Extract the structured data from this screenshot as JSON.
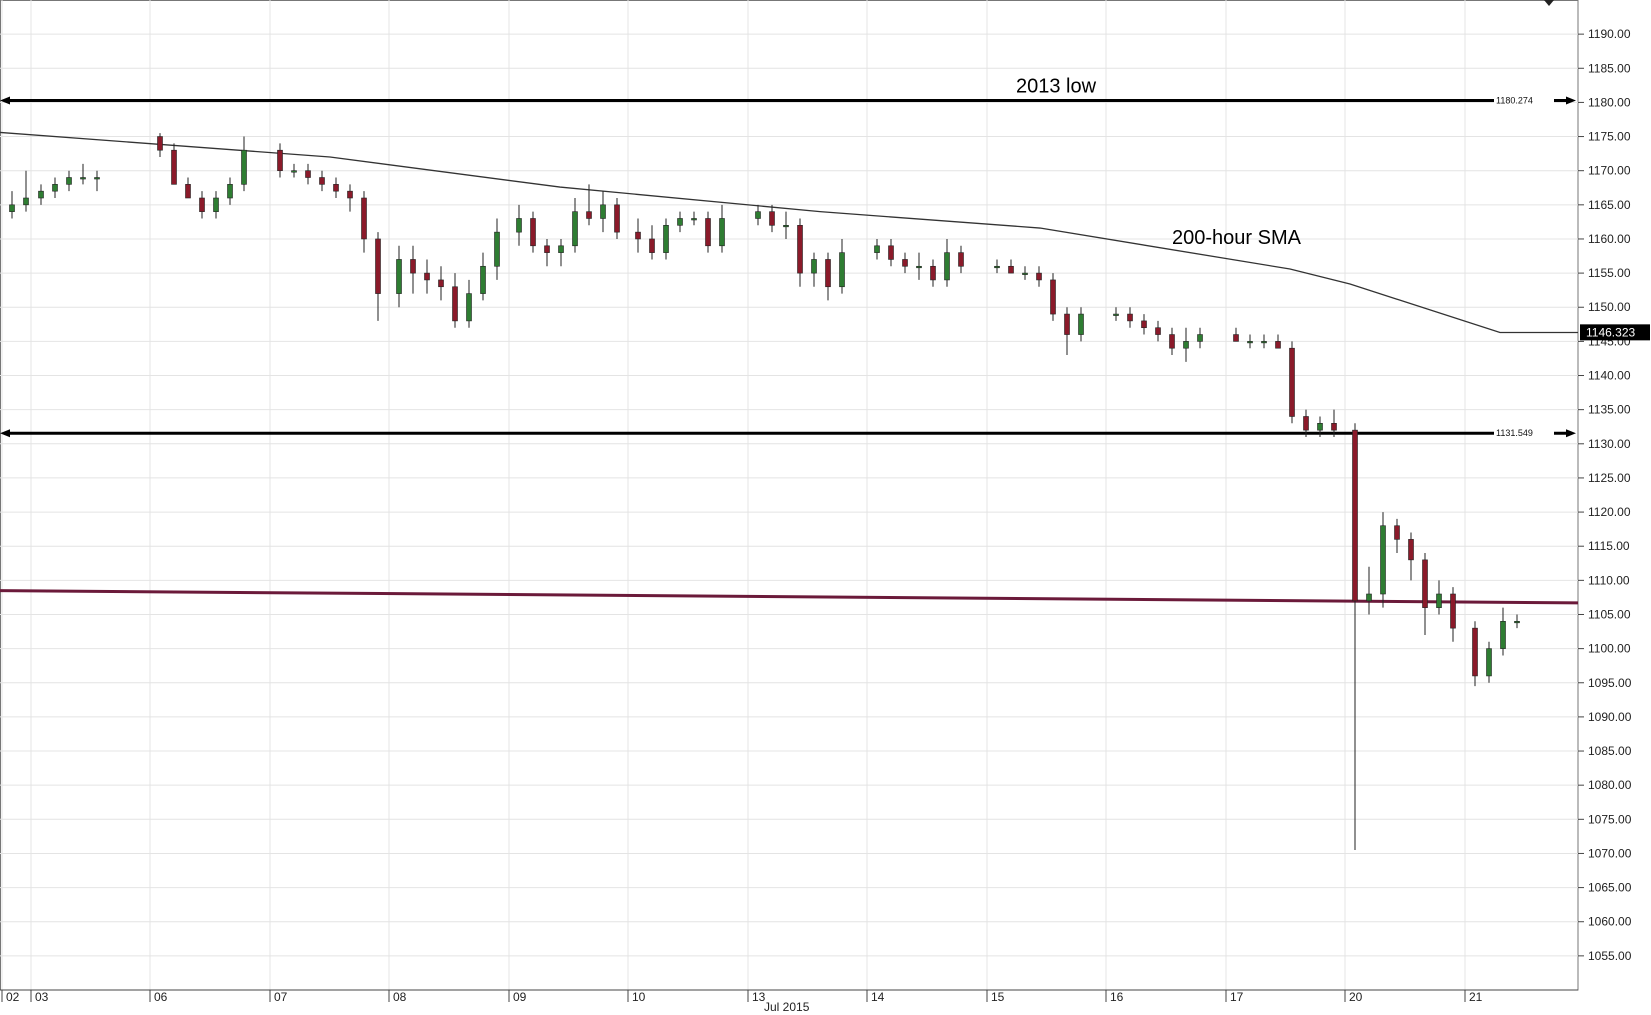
{
  "chart_data": {
    "type": "candlestick",
    "ylim": [
      1050,
      1195
    ],
    "y_ticks": [
      "1055.00",
      "1060.00",
      "1065.00",
      "1070.00",
      "1075.00",
      "1080.00",
      "1085.00",
      "1090.00",
      "1095.00",
      "1100.00",
      "1105.00",
      "1110.00",
      "1115.00",
      "1120.00",
      "1125.00",
      "1130.00",
      "1135.00",
      "1140.00",
      "1145.00",
      "1150.00",
      "1155.00",
      "1160.00",
      "1165.00",
      "1170.00",
      "1175.00",
      "1180.00",
      "1185.00",
      "1190.00"
    ],
    "x_labels": [
      "02",
      "03",
      "06",
      "07",
      "08",
      "09",
      "10",
      "13",
      "14",
      "15",
      "16",
      "17",
      "20",
      "21"
    ],
    "x_sublabel": "Jul 2015",
    "grid": true,
    "current_price": "1146.323",
    "horizontal_levels": [
      {
        "value": 1180.274,
        "label": "1180.274",
        "annotation": "2013 low",
        "color": "#000000"
      },
      {
        "value": 1131.549,
        "label": "1131.549",
        "annotation": "",
        "color": "#000000"
      }
    ],
    "trendline": {
      "start": 1108.5,
      "end": 1106.7,
      "color": "#6b1a3a"
    },
    "sma": {
      "name": "200-hour SMA",
      "color": "#333333",
      "points": [
        {
          "x": "02",
          "y": 1175.6
        },
        {
          "x": "07",
          "y": 1172.0
        },
        {
          "x": "09",
          "y": 1167.6
        },
        {
          "x": "13",
          "y": 1164.0
        },
        {
          "x": "15",
          "y": 1161.6
        },
        {
          "x": "17",
          "y": 1155.6
        },
        {
          "x": "20",
          "y": 1153.4
        },
        {
          "x": "21",
          "y": 1146.3
        }
      ]
    },
    "candles": [
      {
        "day": "02",
        "o": 1164,
        "h": 1167,
        "l": 1163,
        "c": 1165
      },
      {
        "day": "02",
        "o": 1165,
        "h": 1170,
        "l": 1164,
        "c": 1166
      },
      {
        "day": "03",
        "o": 1166,
        "h": 1168,
        "l": 1165,
        "c": 1167
      },
      {
        "day": "03",
        "o": 1167,
        "h": 1169,
        "l": 1166,
        "c": 1168
      },
      {
        "day": "03",
        "o": 1168,
        "h": 1170,
        "l": 1167,
        "c": 1169
      },
      {
        "day": "03",
        "o": 1169,
        "h": 1171,
        "l": 1168,
        "c": 1169
      },
      {
        "day": "03",
        "o": 1169,
        "h": 1170,
        "l": 1167,
        "c": 1169
      },
      {
        "day": "06",
        "o": 1175,
        "h": 1175.5,
        "l": 1172,
        "c": 1173
      },
      {
        "day": "06",
        "o": 1173,
        "h": 1174,
        "l": 1168,
        "c": 1168
      },
      {
        "day": "06",
        "o": 1168,
        "h": 1169,
        "l": 1166,
        "c": 1166
      },
      {
        "day": "06",
        "o": 1166,
        "h": 1167,
        "l": 1163,
        "c": 1164
      },
      {
        "day": "06",
        "o": 1164,
        "h": 1167,
        "l": 1163,
        "c": 1166
      },
      {
        "day": "06",
        "o": 1166,
        "h": 1169,
        "l": 1165,
        "c": 1168
      },
      {
        "day": "06",
        "o": 1168,
        "h": 1175,
        "l": 1167,
        "c": 1173
      },
      {
        "day": "07",
        "o": 1173,
        "h": 1174,
        "l": 1169,
        "c": 1170
      },
      {
        "day": "07",
        "o": 1170,
        "h": 1171,
        "l": 1169,
        "c": 1170
      },
      {
        "day": "07",
        "o": 1170,
        "h": 1171,
        "l": 1168,
        "c": 1169
      },
      {
        "day": "07",
        "o": 1169,
        "h": 1170,
        "l": 1167,
        "c": 1168
      },
      {
        "day": "07",
        "o": 1168,
        "h": 1169,
        "l": 1166,
        "c": 1167
      },
      {
        "day": "07",
        "o": 1167,
        "h": 1168,
        "l": 1164,
        "c": 1166
      },
      {
        "day": "07",
        "o": 1166,
        "h": 1167,
        "l": 1158,
        "c": 1160
      },
      {
        "day": "07",
        "o": 1160,
        "h": 1161,
        "l": 1148,
        "c": 1152
      },
      {
        "day": "08",
        "o": 1152,
        "h": 1159,
        "l": 1150,
        "c": 1157
      },
      {
        "day": "08",
        "o": 1157,
        "h": 1159,
        "l": 1152,
        "c": 1155
      },
      {
        "day": "08",
        "o": 1155,
        "h": 1157,
        "l": 1152,
        "c": 1154
      },
      {
        "day": "08",
        "o": 1154,
        "h": 1156,
        "l": 1151,
        "c": 1153
      },
      {
        "day": "08",
        "o": 1153,
        "h": 1155,
        "l": 1147,
        "c": 1148
      },
      {
        "day": "08",
        "o": 1148,
        "h": 1154,
        "l": 1147,
        "c": 1152
      },
      {
        "day": "08",
        "o": 1152,
        "h": 1158,
        "l": 1151,
        "c": 1156
      },
      {
        "day": "08",
        "o": 1156,
        "h": 1163,
        "l": 1154,
        "c": 1161
      },
      {
        "day": "09",
        "o": 1161,
        "h": 1165,
        "l": 1159,
        "c": 1163
      },
      {
        "day": "09",
        "o": 1163,
        "h": 1164,
        "l": 1158,
        "c": 1159
      },
      {
        "day": "09",
        "o": 1159,
        "h": 1160,
        "l": 1156,
        "c": 1158
      },
      {
        "day": "09",
        "o": 1158,
        "h": 1160,
        "l": 1156,
        "c": 1159
      },
      {
        "day": "09",
        "o": 1159,
        "h": 1166,
        "l": 1158,
        "c": 1164
      },
      {
        "day": "09",
        "o": 1164,
        "h": 1168,
        "l": 1162,
        "c": 1163
      },
      {
        "day": "09",
        "o": 1163,
        "h": 1167,
        "l": 1161,
        "c": 1165
      },
      {
        "day": "09",
        "o": 1165,
        "h": 1166,
        "l": 1160,
        "c": 1161
      },
      {
        "day": "10",
        "o": 1161,
        "h": 1163,
        "l": 1158,
        "c": 1160
      },
      {
        "day": "10",
        "o": 1160,
        "h": 1162,
        "l": 1157,
        "c": 1158
      },
      {
        "day": "10",
        "o": 1158,
        "h": 1163,
        "l": 1157,
        "c": 1162
      },
      {
        "day": "10",
        "o": 1162,
        "h": 1164,
        "l": 1161,
        "c": 1163
      },
      {
        "day": "10",
        "o": 1163,
        "h": 1164,
        "l": 1162,
        "c": 1163
      },
      {
        "day": "10",
        "o": 1163,
        "h": 1164,
        "l": 1158,
        "c": 1159
      },
      {
        "day": "10",
        "o": 1159,
        "h": 1165,
        "l": 1158,
        "c": 1163
      },
      {
        "day": "13",
        "o": 1163,
        "h": 1165,
        "l": 1162,
        "c": 1164
      },
      {
        "day": "13",
        "o": 1164,
        "h": 1165,
        "l": 1161,
        "c": 1162
      },
      {
        "day": "13",
        "o": 1162,
        "h": 1164,
        "l": 1160,
        "c": 1162
      },
      {
        "day": "13",
        "o": 1162,
        "h": 1163,
        "l": 1153,
        "c": 1155
      },
      {
        "day": "13",
        "o": 1155,
        "h": 1158,
        "l": 1153,
        "c": 1157
      },
      {
        "day": "13",
        "o": 1157,
        "h": 1158,
        "l": 1151,
        "c": 1153
      },
      {
        "day": "13",
        "o": 1153,
        "h": 1160,
        "l": 1152,
        "c": 1158
      },
      {
        "day": "14",
        "o": 1158,
        "h": 1160,
        "l": 1157,
        "c": 1159
      },
      {
        "day": "14",
        "o": 1159,
        "h": 1160,
        "l": 1156,
        "c": 1157
      },
      {
        "day": "14",
        "o": 1157,
        "h": 1158,
        "l": 1155,
        "c": 1156
      },
      {
        "day": "14",
        "o": 1156,
        "h": 1158,
        "l": 1154,
        "c": 1156
      },
      {
        "day": "14",
        "o": 1156,
        "h": 1157,
        "l": 1153,
        "c": 1154
      },
      {
        "day": "14",
        "o": 1154,
        "h": 1160,
        "l": 1153,
        "c": 1158
      },
      {
        "day": "14",
        "o": 1158,
        "h": 1159,
        "l": 1155,
        "c": 1156
      },
      {
        "day": "15",
        "o": 1156,
        "h": 1157,
        "l": 1155,
        "c": 1156
      },
      {
        "day": "15",
        "o": 1156,
        "h": 1157,
        "l": 1155,
        "c": 1155
      },
      {
        "day": "15",
        "o": 1155,
        "h": 1156,
        "l": 1154,
        "c": 1155
      },
      {
        "day": "15",
        "o": 1155,
        "h": 1156,
        "l": 1153,
        "c": 1154
      },
      {
        "day": "15",
        "o": 1154,
        "h": 1155,
        "l": 1148,
        "c": 1149
      },
      {
        "day": "15",
        "o": 1149,
        "h": 1150,
        "l": 1143,
        "c": 1146
      },
      {
        "day": "15",
        "o": 1146,
        "h": 1150,
        "l": 1145,
        "c": 1149
      },
      {
        "day": "16",
        "o": 1149,
        "h": 1150,
        "l": 1148,
        "c": 1149
      },
      {
        "day": "16",
        "o": 1149,
        "h": 1150,
        "l": 1147,
        "c": 1148
      },
      {
        "day": "16",
        "o": 1148,
        "h": 1149,
        "l": 1146,
        "c": 1147
      },
      {
        "day": "16",
        "o": 1147,
        "h": 1148,
        "l": 1145,
        "c": 1146
      },
      {
        "day": "16",
        "o": 1146,
        "h": 1147,
        "l": 1143,
        "c": 1144
      },
      {
        "day": "16",
        "o": 1144,
        "h": 1147,
        "l": 1142,
        "c": 1145
      },
      {
        "day": "16",
        "o": 1145,
        "h": 1147,
        "l": 1144,
        "c": 1146
      },
      {
        "day": "17",
        "o": 1146,
        "h": 1147,
        "l": 1145,
        "c": 1145
      },
      {
        "day": "17",
        "o": 1145,
        "h": 1146,
        "l": 1144,
        "c": 1145
      },
      {
        "day": "17",
        "o": 1145,
        "h": 1146,
        "l": 1144,
        "c": 1145
      },
      {
        "day": "17",
        "o": 1145,
        "h": 1146,
        "l": 1144,
        "c": 1144
      },
      {
        "day": "17",
        "o": 1144,
        "h": 1145,
        "l": 1133,
        "c": 1134
      },
      {
        "day": "17",
        "o": 1134,
        "h": 1135,
        "l": 1131,
        "c": 1132
      },
      {
        "day": "17",
        "o": 1132,
        "h": 1134,
        "l": 1131,
        "c": 1133
      },
      {
        "day": "17",
        "o": 1133,
        "h": 1135,
        "l": 1131,
        "c": 1132
      },
      {
        "day": "20",
        "o": 1132,
        "h": 1133,
        "l": 1070.5,
        "c": 1107
      },
      {
        "day": "20",
        "o": 1107,
        "h": 1112,
        "l": 1105,
        "c": 1108
      },
      {
        "day": "20",
        "o": 1108,
        "h": 1120,
        "l": 1106,
        "c": 1118
      },
      {
        "day": "20",
        "o": 1118,
        "h": 1119,
        "l": 1114,
        "c": 1116
      },
      {
        "day": "20",
        "o": 1116,
        "h": 1117,
        "l": 1110,
        "c": 1113
      },
      {
        "day": "20",
        "o": 1113,
        "h": 1114,
        "l": 1102,
        "c": 1106
      },
      {
        "day": "20",
        "o": 1106,
        "h": 1110,
        "l": 1105,
        "c": 1108
      },
      {
        "day": "20",
        "o": 1108,
        "h": 1109,
        "l": 1101,
        "c": 1103
      },
      {
        "day": "21",
        "o": 1103,
        "h": 1104,
        "l": 1094.5,
        "c": 1096
      },
      {
        "day": "21",
        "o": 1096,
        "h": 1101,
        "l": 1095,
        "c": 1100
      },
      {
        "day": "21",
        "o": 1100,
        "h": 1106,
        "l": 1099,
        "c": 1104
      },
      {
        "day": "21",
        "o": 1104,
        "h": 1105,
        "l": 1103,
        "c": 1104
      }
    ]
  }
}
